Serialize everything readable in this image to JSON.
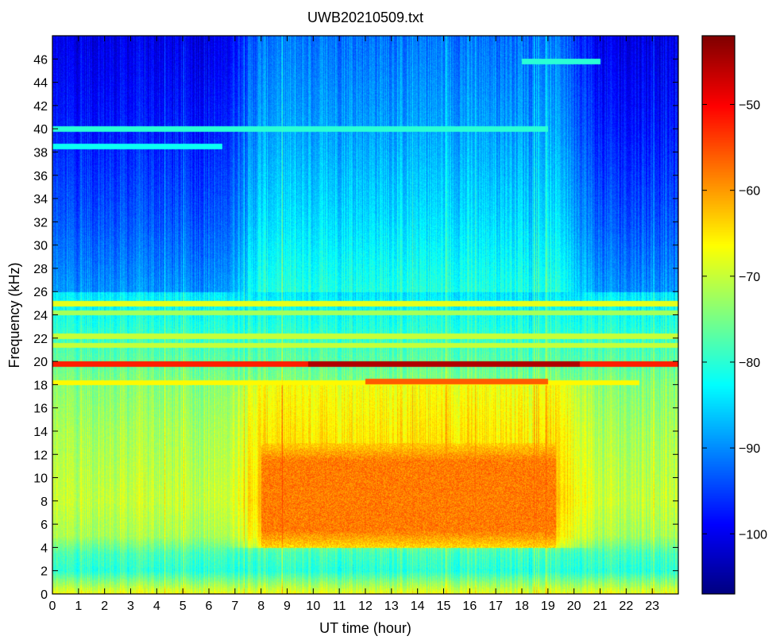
{
  "chart_data": {
    "type": "heatmap",
    "title": "UWB20210509.txt",
    "xlabel": "UT time (hour)",
    "ylabel": "Frequency (kHz)",
    "xlim": [
      0,
      24
    ],
    "ylim": [
      0,
      48
    ],
    "x_ticks": [
      0,
      1,
      2,
      3,
      4,
      5,
      6,
      7,
      8,
      9,
      10,
      11,
      12,
      13,
      14,
      15,
      16,
      17,
      18,
      19,
      20,
      21,
      22,
      23
    ],
    "y_ticks": [
      0,
      2,
      4,
      6,
      8,
      10,
      12,
      14,
      16,
      18,
      20,
      22,
      24,
      26,
      28,
      30,
      32,
      34,
      36,
      38,
      40,
      42,
      44,
      46
    ],
    "colorbar": {
      "range": [
        -107,
        -42
      ],
      "ticks": [
        -100,
        -90,
        -80,
        -70,
        -60,
        -50
      ],
      "tick_labels": [
        "−100",
        "−90",
        "−80",
        "−70",
        "−60",
        "−50"
      ],
      "colormap": "jet"
    },
    "power_profile": {
      "background_by_frequency": [
        {
          "f": 0,
          "v": -67
        },
        {
          "f": 2,
          "v": -80
        },
        {
          "f": 3.5,
          "v": -78
        },
        {
          "f": 5,
          "v": -72
        },
        {
          "f": 8,
          "v": -70
        },
        {
          "f": 14,
          "v": -72
        },
        {
          "f": 18,
          "v": -74
        },
        {
          "f": 22,
          "v": -79
        },
        {
          "f": 26,
          "v": -84
        },
        {
          "f": 32,
          "v": -88
        },
        {
          "f": 40,
          "v": -92
        },
        {
          "f": 48,
          "v": -95
        }
      ],
      "active_hours": [
        7.5,
        20.0
      ],
      "daytime_boost": 7,
      "night_high_freq_reduction": 9,
      "enhanced_region": {
        "x": [
          8.0,
          19.3
        ],
        "f": [
          4,
          13
        ],
        "v": -58
      },
      "narrowband_lines": [
        {
          "f": 19.8,
          "v": -52,
          "x": [
            0,
            24
          ]
        },
        {
          "f": 19.8,
          "v": -45,
          "x": [
            9.8,
            20.2
          ]
        },
        {
          "f": 18.2,
          "v": -66,
          "x": [
            0,
            22.5
          ]
        },
        {
          "f": 18.3,
          "v": -56,
          "x": [
            12,
            19
          ]
        },
        {
          "f": 21.4,
          "v": -70,
          "x": [
            0,
            24
          ]
        },
        {
          "f": 22.2,
          "v": -70,
          "x": [
            0,
            24
          ]
        },
        {
          "f": 24.2,
          "v": -72,
          "x": [
            0,
            24
          ]
        },
        {
          "f": 25.0,
          "v": -68,
          "x": [
            0,
            24
          ]
        },
        {
          "f": 40.0,
          "v": -80,
          "x": [
            0,
            19
          ]
        },
        {
          "f": 38.5,
          "v": -82,
          "x": [
            0,
            6.5
          ]
        },
        {
          "f": 45.8,
          "v": -80,
          "x": [
            18,
            21
          ]
        }
      ]
    }
  }
}
